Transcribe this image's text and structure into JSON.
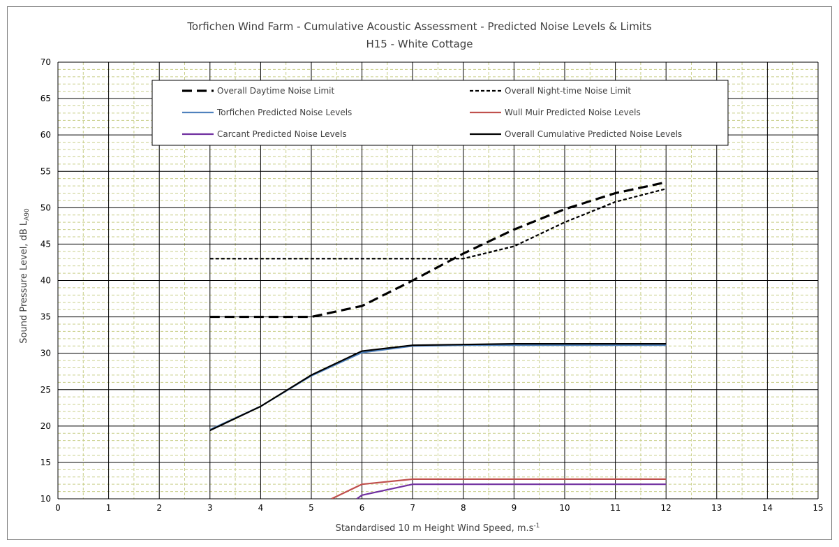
{
  "chart_data": {
    "type": "line",
    "title": "Torfichen Wind Farm - Cumulative Acoustic Assessment - Predicted Noise Levels & Limits",
    "subtitle": "H15 - White Cottage",
    "xlabel": "Standardised 10 m Height Wind Speed, m.s",
    "xlabel_sup": "-1",
    "ylabel": "Sound Pressure Level, dB L",
    "ylabel_sub": "A90",
    "xlim": [
      0,
      15
    ],
    "ylim": [
      10,
      70
    ],
    "x_ticks": [
      "0",
      "1",
      "2",
      "3",
      "4",
      "5",
      "6",
      "7",
      "8",
      "9",
      "10",
      "11",
      "12",
      "13",
      "14",
      "15"
    ],
    "y_ticks": [
      "10",
      "15",
      "20",
      "25",
      "30",
      "35",
      "40",
      "45",
      "50",
      "55",
      "60",
      "65",
      "70"
    ],
    "grid": true,
    "legend_position": "top",
    "series": [
      {
        "name": "Overall Daytime Noise Limit",
        "color": "#000000",
        "style": "long-dash",
        "x": [
          3,
          4,
          5,
          6,
          7,
          8,
          9,
          10,
          11,
          12
        ],
        "y": [
          35.0,
          35.0,
          35.0,
          36.5,
          40.0,
          43.7,
          47.0,
          49.8,
          52.0,
          53.5
        ]
      },
      {
        "name": "Overall Night-time Noise Limit",
        "color": "#000000",
        "style": "short-dash",
        "x": [
          3,
          4,
          5,
          6,
          7,
          8,
          9,
          10,
          11,
          12
        ],
        "y": [
          43.0,
          43.0,
          43.0,
          43.0,
          43.0,
          43.0,
          44.7,
          48.0,
          50.8,
          52.6
        ]
      },
      {
        "name": "Torfichen Predicted Noise Levels",
        "color": "#4f81bd",
        "style": "solid",
        "x": [
          3,
          4,
          5,
          6,
          7,
          8,
          9,
          10,
          11,
          12
        ],
        "y": [
          19.5,
          22.7,
          26.9,
          30.1,
          31.0,
          31.1,
          31.1,
          31.1,
          31.1,
          31.1
        ]
      },
      {
        "name": "Wull Muir Predicted Noise Levels",
        "color": "#c0504d",
        "style": "solid",
        "x": [
          5.4,
          6,
          7,
          8,
          9,
          10,
          11,
          12
        ],
        "y": [
          10.0,
          12.0,
          12.7,
          12.7,
          12.7,
          12.7,
          12.7,
          12.7
        ]
      },
      {
        "name": "Carcant Predicted Noise Levels",
        "color": "#7030a0",
        "style": "solid",
        "x": [
          5.9,
          6,
          7,
          8,
          9,
          10,
          11,
          12
        ],
        "y": [
          10.0,
          10.5,
          12.0,
          12.0,
          12.0,
          12.0,
          12.0,
          12.0
        ]
      },
      {
        "name": "Overall Cumulative Predicted Noise Levels",
        "color": "#000000",
        "style": "solid",
        "x": [
          3,
          4,
          5,
          6,
          7,
          8,
          9,
          10,
          11,
          12
        ],
        "y": [
          19.4,
          22.7,
          27.0,
          30.3,
          31.1,
          31.2,
          31.3,
          31.3,
          31.3,
          31.3
        ]
      }
    ]
  }
}
